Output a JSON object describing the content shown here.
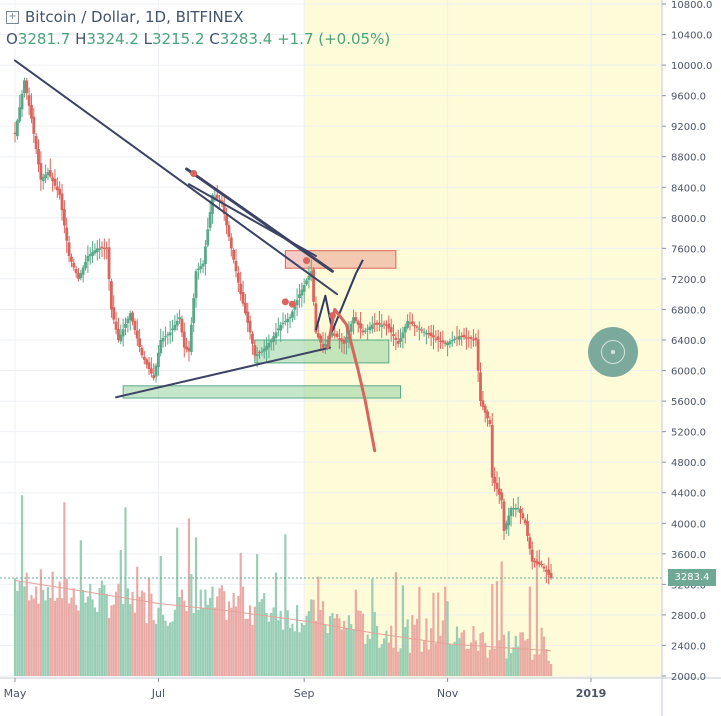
{
  "legend": {
    "title": "Bitcoin / Dollar, 1D, BITFINEX",
    "o_label": "O",
    "o_value": "3281.7",
    "h_label": "H",
    "h_value": "3324.2",
    "l_label": "L",
    "l_value": "3215.2",
    "c_label": "C",
    "c_value": "3283.4",
    "change": "+1.7 (+0.05%)"
  },
  "last_price_label": "3283.4",
  "colors": {
    "up": "#5aa88a",
    "down": "#d9655e",
    "up_vol": "#8ec9ae",
    "down_vol": "#e8a29d",
    "highlight": "#fdfbd8",
    "trendline": "#3d4463",
    "projection": "#d9655e",
    "last_price": "#6fa894"
  },
  "chart_data": {
    "type": "candlestick",
    "title": "Bitcoin / Dollar, 1D, BITFINEX",
    "y_ticks": [
      2000,
      2400,
      2800,
      3200,
      3600,
      4000,
      4400,
      4800,
      5200,
      5600,
      6000,
      6400,
      6800,
      7200,
      7600,
      8000,
      8400,
      8800,
      9200,
      9600,
      10000,
      10400,
      10800
    ],
    "y_tick_labels": [
      "2000.0",
      "2400.0",
      "2800.0",
      "3200.0",
      "3600.0",
      "4000.0",
      "4400.0",
      "4800.0",
      "5200.0",
      "5600.0",
      "6000.0",
      "6400.0",
      "6800.0",
      "7200.0",
      "7600.0",
      "8000.0",
      "8400.0",
      "8800.0",
      "9200.0",
      "9600.0",
      "10000.0",
      "10400.0",
      "10800.0"
    ],
    "ylim": [
      1990,
      10830
    ],
    "x_ticks": [
      {
        "label": "May",
        "date": "2018-05-01"
      },
      {
        "label": "Jul",
        "date": "2018-07-01"
      },
      {
        "label": "Sep",
        "date": "2018-09-01"
      },
      {
        "label": "Nov",
        "date": "2018-11-01"
      },
      {
        "label": "2019",
        "date": "2019-01-01"
      }
    ],
    "xlim": [
      "2018-05-01",
      "2019-01-31"
    ],
    "highlight_range": [
      "2018-09-01",
      "2019-01-31"
    ],
    "close_path": [
      [
        "2018-05-01",
        9100
      ],
      [
        "2018-05-05",
        9800
      ],
      [
        "2018-05-08",
        9300
      ],
      [
        "2018-05-12",
        8500
      ],
      [
        "2018-05-15",
        8600
      ],
      [
        "2018-05-20",
        8300
      ],
      [
        "2018-05-24",
        7500
      ],
      [
        "2018-05-28",
        7200
      ],
      [
        "2018-06-01",
        7500
      ],
      [
        "2018-06-05",
        7600
      ],
      [
        "2018-06-09",
        7600
      ],
      [
        "2018-06-11",
        6800
      ],
      [
        "2018-06-14",
        6400
      ],
      [
        "2018-06-19",
        6750
      ],
      [
        "2018-06-24",
        6200
      ],
      [
        "2018-06-29",
        5900
      ],
      [
        "2018-07-02",
        6400
      ],
      [
        "2018-07-06",
        6500
      ],
      [
        "2018-07-10",
        6700
      ],
      [
        "2018-07-12",
        6300
      ],
      [
        "2018-07-14",
        6250
      ],
      [
        "2018-07-17",
        7300
      ],
      [
        "2018-07-20",
        7400
      ],
      [
        "2018-07-24",
        8300
      ],
      [
        "2018-07-28",
        8200
      ],
      [
        "2018-08-01",
        7600
      ],
      [
        "2018-08-05",
        7000
      ],
      [
        "2018-08-09",
        6500
      ],
      [
        "2018-08-11",
        6200
      ],
      [
        "2018-08-14",
        6250
      ],
      [
        "2018-08-18",
        6400
      ],
      [
        "2018-08-22",
        6600
      ],
      [
        "2018-08-26",
        6700
      ],
      [
        "2018-08-30",
        7000
      ],
      [
        "2018-09-04",
        7300
      ],
      [
        "2018-09-06",
        6500
      ],
      [
        "2018-09-09",
        6300
      ],
      [
        "2018-09-13",
        6500
      ],
      [
        "2018-09-18",
        6350
      ],
      [
        "2018-09-22",
        6700
      ],
      [
        "2018-09-26",
        6500
      ],
      [
        "2018-09-30",
        6600
      ],
      [
        "2018-10-06",
        6600
      ],
      [
        "2018-10-11",
        6350
      ],
      [
        "2018-10-15",
        6650
      ],
      [
        "2018-10-20",
        6550
      ],
      [
        "2018-10-25",
        6450
      ],
      [
        "2018-10-31",
        6350
      ],
      [
        "2018-11-06",
        6450
      ],
      [
        "2018-11-13",
        6400
      ],
      [
        "2018-11-15",
        5600
      ],
      [
        "2018-11-19",
        5300
      ],
      [
        "2018-11-20",
        4600
      ],
      [
        "2018-11-24",
        4300
      ],
      [
        "2018-11-25",
        3900
      ],
      [
        "2018-11-28",
        4200
      ],
      [
        "2018-12-01",
        4200
      ],
      [
        "2018-12-04",
        4000
      ],
      [
        "2018-12-07",
        3500
      ],
      [
        "2018-12-11",
        3450
      ],
      [
        "2018-12-15",
        3283
      ]
    ],
    "volume_path": [
      [
        "2018-05-01",
        3200
      ],
      [
        "2018-05-20",
        3050
      ],
      [
        "2018-06-10",
        2950
      ],
      [
        "2018-07-01",
        2850
      ],
      [
        "2018-08-01",
        2900
      ],
      [
        "2018-09-01",
        2750
      ],
      [
        "2018-10-01",
        2550
      ],
      [
        "2018-11-01",
        2450
      ],
      [
        "2018-11-20",
        2400
      ],
      [
        "2018-12-15",
        2350
      ]
    ],
    "volume_ma_path": [
      [
        "2018-05-01",
        3250
      ],
      [
        "2018-06-01",
        3100
      ],
      [
        "2018-07-01",
        2950
      ],
      [
        "2018-08-01",
        2850
      ],
      [
        "2018-09-01",
        2720
      ],
      [
        "2018-10-01",
        2560
      ],
      [
        "2018-11-01",
        2420
      ],
      [
        "2018-12-15",
        2330
      ]
    ],
    "trendlines": [
      {
        "from": [
          "2018-05-01",
          10060
        ],
        "to": [
          "2018-09-15",
          7000
        ]
      },
      {
        "from": [
          "2018-07-13",
          8640
        ],
        "to": [
          "2018-09-13",
          7300
        ]
      },
      {
        "from": [
          "2018-07-14",
          8440
        ],
        "to": [
          "2018-09-06",
          7500
        ]
      },
      {
        "from": [
          "2018-06-13",
          5650
        ],
        "to": [
          "2018-09-12",
          6300
        ]
      }
    ],
    "zones": [
      {
        "from": "2018-08-24",
        "to": "2018-10-10",
        "low": 7340,
        "high": 7570,
        "color": "red"
      },
      {
        "from": "2018-08-11",
        "to": "2018-10-07",
        "low": 6100,
        "high": 6400,
        "color": "green"
      },
      {
        "from": "2018-06-16",
        "to": "2018-10-12",
        "low": 5640,
        "high": 5800,
        "color": "green"
      }
    ],
    "projection_path": [
      [
        "2018-09-11",
        6300
      ],
      [
        "2018-09-14",
        6800
      ],
      [
        "2018-09-19",
        6600
      ],
      [
        "2018-09-24",
        6000
      ],
      [
        "2018-09-27",
        5600
      ],
      [
        "2018-10-01",
        4950
      ]
    ],
    "pattern_path": [
      [
        "2018-09-06",
        6530
      ],
      [
        "2018-09-10",
        6980
      ],
      [
        "2018-09-13",
        6520
      ],
      [
        "2018-09-17",
        6820
      ],
      [
        "2018-09-23",
        7270
      ],
      [
        "2018-09-26",
        7450
      ]
    ],
    "markers": [
      [
        "2018-07-16",
        8580
      ],
      [
        "2018-09-02",
        7440
      ],
      [
        "2018-08-27",
        6870
      ],
      [
        "2018-08-24",
        6900
      ],
      [
        "2018-09-13",
        6720
      ]
    ],
    "last_price": 3283.4
  }
}
